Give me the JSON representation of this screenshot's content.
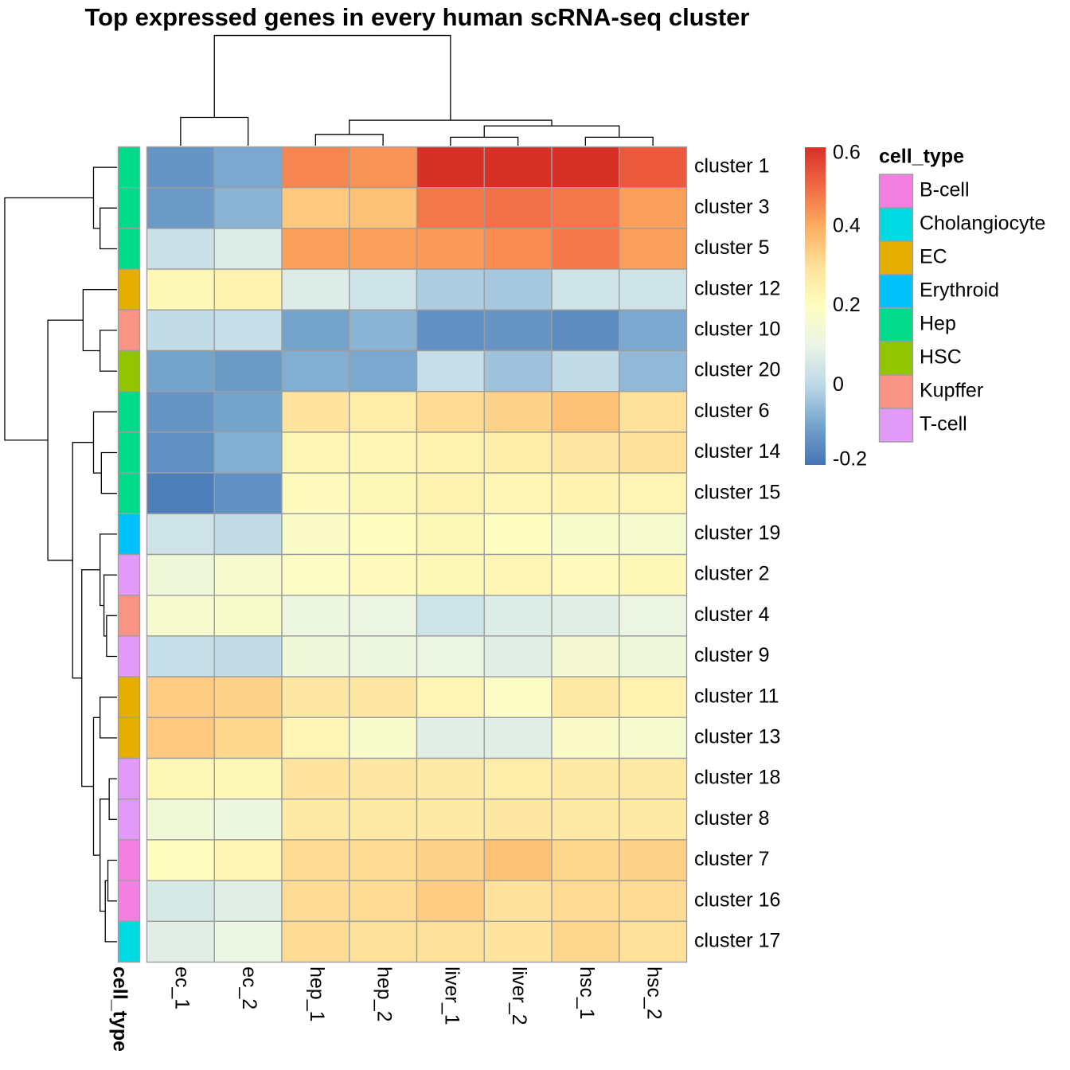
{
  "chart_data": {
    "type": "heatmap",
    "title": "Top expressed genes in every human scRNA-seq cluster",
    "columns": [
      "ec_1",
      "ec_2",
      "hep_1",
      "hep_2",
      "liver_1",
      "liver_2",
      "hsc_1",
      "hsc_2"
    ],
    "rows": [
      "cluster 1",
      "cluster 3",
      "cluster 5",
      "cluster 12",
      "cluster 10",
      "cluster 20",
      "cluster 6",
      "cluster 14",
      "cluster 15",
      "cluster 19",
      "cluster 2",
      "cluster 4",
      "cluster 9",
      "cluster 11",
      "cluster 13",
      "cluster 18",
      "cluster 8",
      "cluster 7",
      "cluster 16",
      "cluster 17"
    ],
    "values": [
      [
        -0.13,
        -0.09,
        0.46,
        0.44,
        0.6,
        0.6,
        0.6,
        0.53
      ],
      [
        -0.12,
        -0.07,
        0.35,
        0.36,
        0.48,
        0.49,
        0.48,
        0.42
      ],
      [
        0.03,
        0.07,
        0.42,
        0.42,
        0.43,
        0.45,
        0.48,
        0.42
      ],
      [
        0.22,
        0.24,
        0.07,
        0.04,
        -0.02,
        -0.03,
        0.04,
        0.04
      ],
      [
        0.01,
        0.02,
        -0.1,
        -0.07,
        -0.14,
        -0.13,
        -0.15,
        -0.09
      ],
      [
        -0.1,
        -0.12,
        -0.08,
        -0.09,
        0.02,
        -0.04,
        0.01,
        -0.06
      ],
      [
        -0.13,
        -0.1,
        0.29,
        0.26,
        0.31,
        0.33,
        0.36,
        0.3
      ],
      [
        -0.14,
        -0.08,
        0.23,
        0.23,
        0.24,
        0.26,
        0.28,
        0.3
      ],
      [
        -0.18,
        -0.14,
        0.21,
        0.22,
        0.24,
        0.23,
        0.24,
        0.23
      ],
      [
        0.04,
        0.01,
        0.18,
        0.2,
        0.22,
        0.2,
        0.17,
        0.16
      ],
      [
        0.13,
        0.16,
        0.19,
        0.21,
        0.22,
        0.23,
        0.21,
        0.22
      ],
      [
        0.16,
        0.17,
        0.12,
        0.11,
        0.04,
        0.07,
        0.08,
        0.11
      ],
      [
        0.02,
        0.01,
        0.13,
        0.12,
        0.11,
        0.08,
        0.15,
        0.13
      ],
      [
        0.34,
        0.33,
        0.28,
        0.28,
        0.23,
        0.19,
        0.27,
        0.24
      ],
      [
        0.35,
        0.32,
        0.23,
        0.17,
        0.08,
        0.08,
        0.18,
        0.16
      ],
      [
        0.22,
        0.22,
        0.29,
        0.28,
        0.27,
        0.26,
        0.27,
        0.27
      ],
      [
        0.14,
        0.12,
        0.27,
        0.27,
        0.27,
        0.28,
        0.27,
        0.27
      ],
      [
        0.2,
        0.23,
        0.31,
        0.31,
        0.33,
        0.36,
        0.32,
        0.33
      ],
      [
        0.06,
        0.08,
        0.31,
        0.31,
        0.34,
        0.3,
        0.31,
        0.31
      ],
      [
        0.08,
        0.11,
        0.31,
        0.3,
        0.3,
        0.29,
        0.32,
        0.3
      ]
    ],
    "row_annotation": {
      "name": "cell_type",
      "values": [
        "Hep",
        "Hep",
        "Hep",
        "EC",
        "Kupffer",
        "HSC",
        "Hep",
        "Hep",
        "Hep",
        "Erythroid",
        "T-cell",
        "Kupffer",
        "T-cell",
        "EC",
        "EC",
        "T-cell",
        "T-cell",
        "B-cell",
        "B-cell",
        "Cholangiocyte"
      ]
    },
    "annotation_legend": {
      "title": "cell_type",
      "items": [
        {
          "label": "B-cell",
          "color": "#F47FE3"
        },
        {
          "label": "Cholangiocyte",
          "color": "#00DAE3"
        },
        {
          "label": "EC",
          "color": "#E6AE00"
        },
        {
          "label": "Erythroid",
          "color": "#00C1FA"
        },
        {
          "label": "Hep",
          "color": "#00DA8A"
        },
        {
          "label": "HSC",
          "color": "#92C400"
        },
        {
          "label": "Kupffer",
          "color": "#F99385"
        },
        {
          "label": "T-cell",
          "color": "#E29AF8"
        }
      ]
    },
    "color_scale": {
      "min": -0.2,
      "max": 0.6,
      "ticks": [
        {
          "value": 0.6,
          "label": "0.6"
        },
        {
          "value": 0.4,
          "label": "0.4"
        },
        {
          "value": 0.2,
          "label": "0.2"
        },
        {
          "value": 0.0,
          "label": "0"
        },
        {
          "value": -0.2,
          "label": "-0.2"
        }
      ],
      "stops": [
        [
          -0.2,
          "#4575B4"
        ],
        [
          -0.1,
          "#74A3CC"
        ],
        [
          0.0,
          "#BCD8E7"
        ],
        [
          0.1,
          "#E9F4E6"
        ],
        [
          0.2,
          "#FEFEC0"
        ],
        [
          0.3,
          "#FEE19A"
        ],
        [
          0.4,
          "#FDAE61"
        ],
        [
          0.5,
          "#F26A45"
        ],
        [
          0.6,
          "#D73027"
        ]
      ]
    },
    "grid_color": "#9E9E9E",
    "column_dendrogram": {
      "leaves": [
        "ec_1",
        "ec_2",
        "hep_1",
        "hep_2",
        "liver_1",
        "liver_2",
        "hsc_1",
        "hsc_2"
      ],
      "merges": [
        [
          0,
          1,
          0.1
        ],
        [
          2,
          3,
          0.04
        ],
        [
          4,
          5,
          0.03
        ],
        [
          6,
          7,
          0.03
        ],
        [
          -3,
          -4,
          0.07
        ],
        [
          -2,
          -5,
          0.09
        ],
        [
          -1,
          -6,
          0.39
        ]
      ]
    },
    "row_dendrogram": {
      "merges": [
        [
          1,
          2,
          0.13
        ],
        [
          0,
          -1,
          0.18
        ],
        [
          4,
          5,
          0.13
        ],
        [
          3,
          -3,
          0.26
        ],
        [
          7,
          8,
          0.12
        ],
        [
          6,
          -5,
          0.18
        ],
        [
          11,
          12,
          0.08
        ],
        [
          10,
          -7,
          0.1
        ],
        [
          9,
          -8,
          0.13
        ],
        [
          13,
          14,
          0.13
        ],
        [
          15,
          16,
          0.06
        ],
        [
          17,
          18,
          0.07
        ],
        [
          -12,
          19,
          0.09
        ],
        [
          -11,
          -13,
          0.13
        ],
        [
          -10,
          -14,
          0.18
        ],
        [
          -9,
          -15,
          0.27
        ],
        [
          -6,
          -16,
          0.34
        ],
        [
          -4,
          -17,
          0.53
        ],
        [
          -2,
          -18,
          0.86
        ]
      ]
    }
  }
}
